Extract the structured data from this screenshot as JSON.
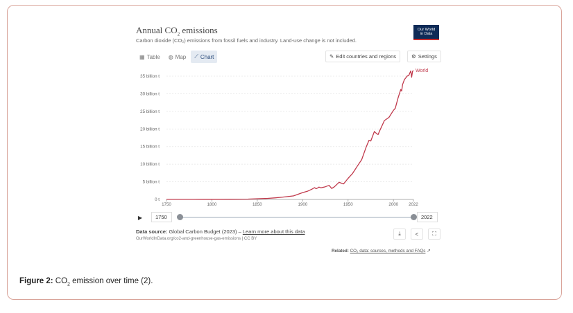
{
  "widget": {
    "title_pre": "Annual CO",
    "title_sub": "2",
    "title_post": " emissions",
    "subtitle": "Carbon dioxide (CO₂) emissions from fossil fuels and industry. Land-use change is not included.",
    "logo_line1": "Our World",
    "logo_line2": "in Data",
    "tabs": [
      {
        "label": "Table",
        "icon": "table-icon",
        "glyph": "▦"
      },
      {
        "label": "Map",
        "icon": "globe-icon",
        "glyph": "◍"
      },
      {
        "label": "Chart",
        "icon": "line-chart-icon",
        "glyph": "⟋"
      }
    ],
    "edit_label": "Edit countries and regions",
    "edit_glyph": "✎",
    "settings_label": "Settings",
    "settings_glyph": "⚙"
  },
  "timeline": {
    "play_glyph": "▶",
    "start_year": "1750",
    "end_year": "2022"
  },
  "footer": {
    "source_label": "Data source:",
    "source_text": " Global Carbon Budget (2023) – ",
    "learn_more": "Learn more about this data",
    "url_text": "OurWorldInData.org/co2-and-greenhouse-gas-emissions | CC BY",
    "download_glyph": "⤓",
    "share_glyph": "<",
    "fullscreen_glyph": "⛶",
    "related_label": "Related: ",
    "related_link": "CO₂ data: sources, methods and FAQs",
    "external_glyph": "↗"
  },
  "caption": {
    "label": "Figure 2:",
    "text_pre": " CO",
    "text_sub": "2",
    "text_post": " emission over time (2)."
  },
  "colors": {
    "series": "#c0394b",
    "grid": "#e6e6e6"
  },
  "chart_data": {
    "type": "line",
    "title": "Annual CO₂ emissions",
    "xlabel": "",
    "ylabel": "",
    "xlim": [
      1750,
      2022
    ],
    "ylim": [
      0,
      35
    ],
    "x_ticks": [
      1750,
      1800,
      1850,
      1900,
      1950,
      2000,
      2022
    ],
    "y_ticks": [
      {
        "value": 0,
        "label": "0 t"
      },
      {
        "value": 5,
        "label": "5 billion t"
      },
      {
        "value": 10,
        "label": "10 billion t"
      },
      {
        "value": 15,
        "label": "15 billion t"
      },
      {
        "value": 20,
        "label": "20 billion t"
      },
      {
        "value": 25,
        "label": "25 billion t"
      },
      {
        "value": 30,
        "label": "30 billion t"
      },
      {
        "value": 35,
        "label": "35 billion t"
      }
    ],
    "series": [
      {
        "name": "World",
        "x": [
          1750,
          1760,
          1770,
          1780,
          1790,
          1800,
          1810,
          1820,
          1830,
          1840,
          1850,
          1860,
          1870,
          1880,
          1890,
          1900,
          1905,
          1910,
          1913,
          1915,
          1918,
          1920,
          1925,
          1929,
          1932,
          1935,
          1940,
          1945,
          1946,
          1950,
          1955,
          1960,
          1965,
          1970,
          1973,
          1975,
          1979,
          1980,
          1983,
          1985,
          1990,
          1995,
          2000,
          2002,
          2005,
          2008,
          2009,
          2010,
          2012,
          2015,
          2017,
          2019,
          2020,
          2021,
          2022
        ],
        "values": [
          0.01,
          0.01,
          0.02,
          0.02,
          0.03,
          0.03,
          0.04,
          0.05,
          0.07,
          0.1,
          0.2,
          0.28,
          0.46,
          0.7,
          1.0,
          1.95,
          2.3,
          2.9,
          3.35,
          3.05,
          3.5,
          3.3,
          3.6,
          4.0,
          3.1,
          3.6,
          4.85,
          4.4,
          4.7,
          6.0,
          7.4,
          9.4,
          11.3,
          14.9,
          16.8,
          16.6,
          19.3,
          19.0,
          18.4,
          19.6,
          22.4,
          23.3,
          25.3,
          25.9,
          28.8,
          31.2,
          30.8,
          32.6,
          34.0,
          35.0,
          35.3,
          36.5,
          34.7,
          36.4,
          36.6
        ]
      }
    ]
  }
}
